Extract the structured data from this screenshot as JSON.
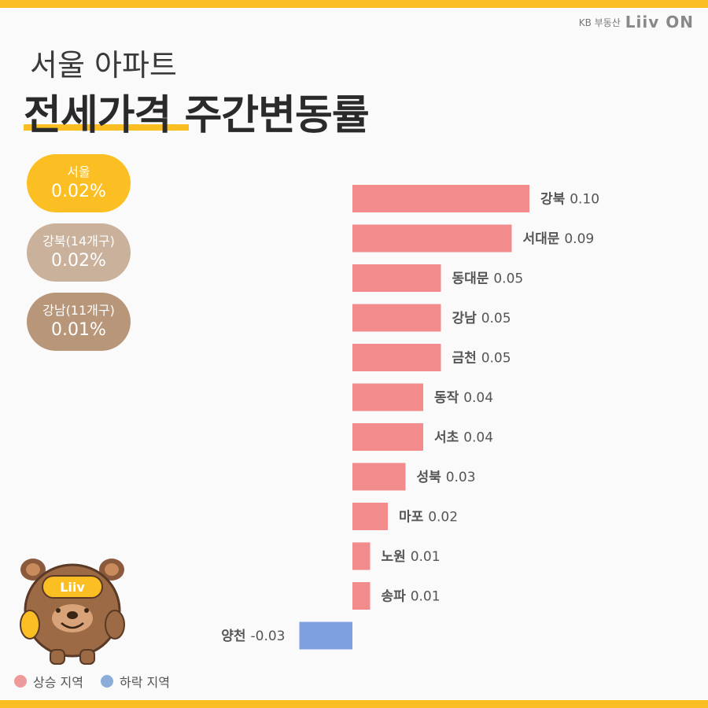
{
  "brand": {
    "kb": "KB 부동산",
    "logo_main": "Liiv",
    "logo_suffix": "ON"
  },
  "title": {
    "line1": "서울 아파트",
    "line2": "전세가격 주간변동률"
  },
  "summary": [
    {
      "label": "서울",
      "value": "0.02%",
      "color": "#fbbf24"
    },
    {
      "label": "강북(14개구)",
      "value": "0.02%",
      "color": "#c9b19b"
    },
    {
      "label": "강남(11개구)",
      "value": "0.01%",
      "color": "#b89679"
    }
  ],
  "mascot": {
    "badge_text": "Liiv"
  },
  "legend": [
    {
      "label": "상승 지역",
      "color": "#ef9a9a"
    },
    {
      "label": "하락 지역",
      "color": "#8aaed8"
    }
  ],
  "chart_data": {
    "type": "bar",
    "orientation": "horizontal",
    "categories": [
      "강북",
      "서대문",
      "동대문",
      "강남",
      "금천",
      "동작",
      "서초",
      "성북",
      "마포",
      "노원",
      "송파",
      "양천"
    ],
    "values": [
      0.1,
      0.09,
      0.05,
      0.05,
      0.05,
      0.04,
      0.04,
      0.03,
      0.02,
      0.01,
      0.01,
      -0.03
    ],
    "value_labels": [
      "0.10",
      "0.09",
      "0.05",
      "0.05",
      "0.05",
      "0.04",
      "0.04",
      "0.03",
      "0.02",
      "0.01",
      "0.01",
      "-0.03"
    ],
    "colors": {
      "positive": "#f28b8b",
      "negative": "#7ea0de"
    },
    "title": "",
    "xlabel": "",
    "ylabel": ""
  }
}
